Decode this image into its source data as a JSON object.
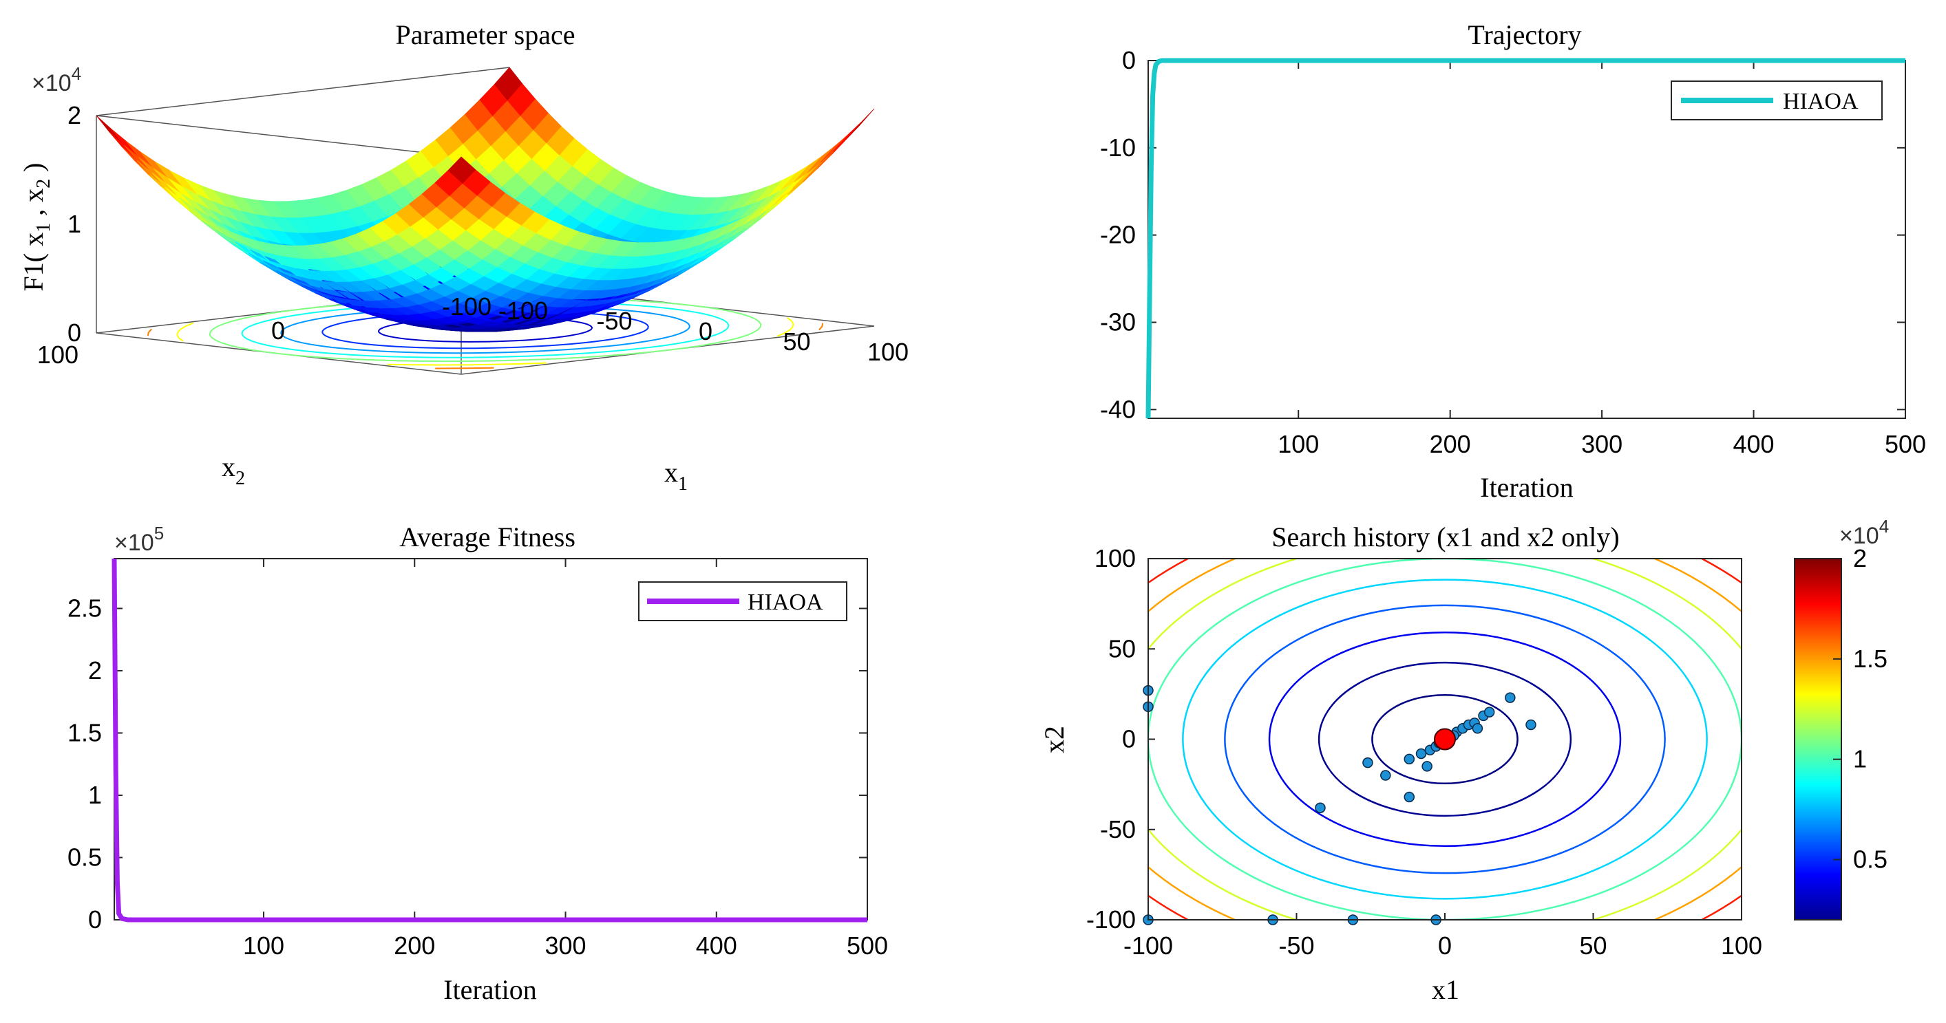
{
  "chart_data": [
    {
      "id": "parameter_space",
      "type": "surface3d",
      "title": "Parameter space",
      "xlabel": "x",
      "xlabel_sub": "1",
      "ylabel": "x",
      "ylabel_sub": "2",
      "zlabel_main": "F1( x",
      "zlabel_sub1": "1",
      "zlabel_mid": " , x",
      "zlabel_sub2": "2",
      "zlabel_end": " )",
      "z_multiplier_base": "×10",
      "z_multiplier_exp": "4",
      "x_range": [
        -100,
        100
      ],
      "y_range": [
        -100,
        100
      ],
      "z_range": [
        0,
        20000
      ],
      "x_ticks": [
        "-100",
        "-50",
        "0",
        "50",
        "100"
      ],
      "y_ticks": [
        "-100",
        "0",
        "100"
      ],
      "z_ticks": [
        "0",
        "1",
        "2"
      ],
      "function": "x1^2 + x2^2"
    },
    {
      "id": "trajectory",
      "type": "line",
      "title": "Trajectory",
      "xlabel": "Iteration",
      "ylabel": "",
      "xlim": [
        1,
        500
      ],
      "ylim": [
        -41,
        0
      ],
      "x_ticks": [
        100,
        200,
        300,
        400,
        500
      ],
      "y_ticks": [
        -40,
        -30,
        -20,
        -10,
        0
      ],
      "color": "#19c8c8",
      "series": [
        {
          "name": "HIAOA",
          "x": [
            1,
            2,
            3,
            4,
            5,
            6,
            8,
            10,
            20,
            100,
            200,
            300,
            400,
            500
          ],
          "values": [
            -41,
            -26,
            -12,
            -4,
            -1.5,
            -0.5,
            -0.1,
            0,
            0,
            0,
            0,
            0,
            0,
            0
          ]
        }
      ],
      "legend": "top-right"
    },
    {
      "id": "average_fitness",
      "type": "line",
      "title": "Average Fitness",
      "xlabel": "Iteration",
      "ylabel": "",
      "multiplier_base": "×10",
      "multiplier_exp": "5",
      "xlim": [
        1,
        500
      ],
      "ylim": [
        0,
        2.9
      ],
      "x_ticks": [
        100,
        200,
        300,
        400,
        500
      ],
      "y_ticks": [
        0,
        0.5,
        1,
        1.5,
        2,
        2.5
      ],
      "y_tick_labels": [
        "0",
        "0.5",
        "1",
        "1.5",
        "2",
        "2.5"
      ],
      "color": "#a020f0",
      "series": [
        {
          "name": "HIAOA",
          "x": [
            1,
            2,
            3,
            4,
            6,
            10,
            100,
            200,
            300,
            400,
            500
          ],
          "values": [
            2.9,
            1.2,
            0.3,
            0.05,
            0.01,
            0,
            0,
            0,
            0,
            0,
            0
          ]
        }
      ],
      "legend": "top-right"
    },
    {
      "id": "search_history",
      "type": "scatter",
      "title": "Search history (x1 and x2 only)",
      "xlabel": "x1",
      "ylabel": "x2",
      "xlim": [
        -100,
        100
      ],
      "ylim": [
        -100,
        100
      ],
      "x_ticks": [
        -100,
        -50,
        0,
        50,
        100
      ],
      "y_ticks": [
        -100,
        -50,
        0,
        50,
        100
      ],
      "contour_levels": [
        600,
        1800,
        3500,
        5500,
        7800,
        10000,
        12500,
        15000,
        17500
      ],
      "points": [
        [
          -100,
          27
        ],
        [
          -100,
          18
        ],
        [
          -100,
          -100
        ],
        [
          -58,
          -100
        ],
        [
          -31,
          -100
        ],
        [
          -3,
          -100
        ],
        [
          -42,
          -38
        ],
        [
          -26,
          -13
        ],
        [
          -20,
          -20
        ],
        [
          -12,
          -32
        ],
        [
          -12,
          -11
        ],
        [
          -8,
          -8
        ],
        [
          -6,
          -15
        ],
        [
          -5,
          -6
        ],
        [
          -3,
          -4
        ],
        [
          -2,
          -2
        ],
        [
          2,
          2
        ],
        [
          4,
          4
        ],
        [
          6,
          6
        ],
        [
          8,
          8
        ],
        [
          10,
          9
        ],
        [
          11,
          6
        ],
        [
          13,
          13
        ],
        [
          15,
          15
        ],
        [
          22,
          23
        ],
        [
          29,
          8
        ],
        [
          1,
          1
        ],
        [
          3,
          2
        ],
        [
          -1,
          -1
        ]
      ],
      "best_point": [
        0,
        0
      ],
      "point_color": "#1e90d6",
      "best_color": "#ff0000",
      "colorbar": {
        "multiplier_base": "×10",
        "multiplier_exp": "4",
        "range": [
          2000,
          20000
        ],
        "ticks": [
          5000,
          10000,
          15000,
          20000
        ],
        "tick_labels": [
          "0.5",
          "1",
          "1.5",
          "2"
        ]
      }
    }
  ]
}
